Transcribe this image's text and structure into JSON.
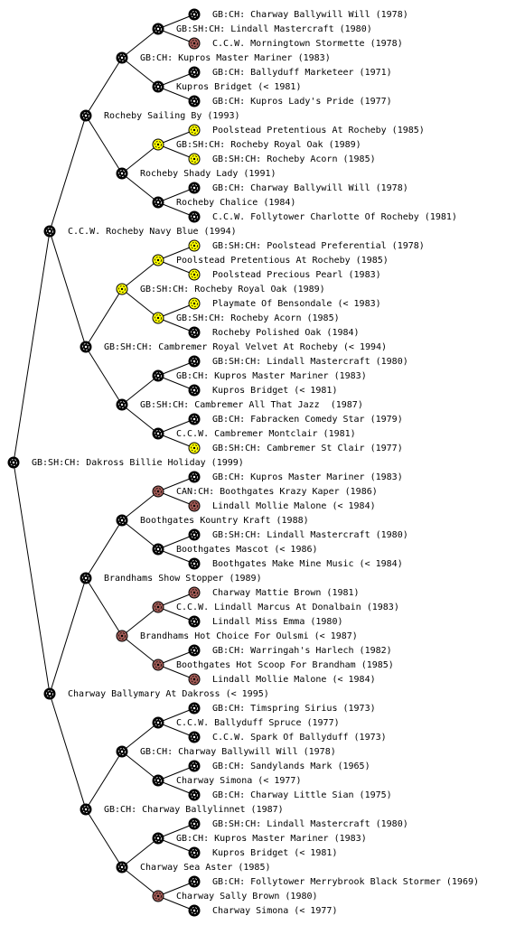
{
  "nodes": [
    {
      "label": "GB:CH: Charway Ballywill Will (1978)",
      "color": "#000000"
    },
    {
      "label": "GB:SH:CH: Lindall Mastercraft (1980)",
      "color": "#000000"
    },
    {
      "label": "C.C.W. Morningtown Stormette (1978)",
      "color": "#a05a55"
    },
    {
      "label": "GB:CH: Kupros Master Mariner (1983)",
      "color": "#000000"
    },
    {
      "label": "GB:CH: Ballyduff Marketeer (1971)",
      "color": "#000000"
    },
    {
      "label": "Kupros Bridget (< 1981)",
      "color": "#000000"
    },
    {
      "label": "GB:CH: Kupros Lady's Pride (1977)",
      "color": "#000000"
    },
    {
      "label": "Rocheby Sailing By (1993)",
      "color": "#000000"
    },
    {
      "label": "Poolstead Pretentious At Rocheby (1985)",
      "color": "#ffff00"
    },
    {
      "label": "GB:SH:CH: Rocheby Royal Oak (1989)",
      "color": "#ffff00"
    },
    {
      "label": "GB:SH:CH: Rocheby Acorn (1985)",
      "color": "#ffff00"
    },
    {
      "label": "Rocheby Shady Lady (1991)",
      "color": "#000000"
    },
    {
      "label": "GB:CH: Charway Ballywill Will (1978)",
      "color": "#000000"
    },
    {
      "label": "Rocheby Chalice (1984)",
      "color": "#000000"
    },
    {
      "label": "C.C.W. Follytower Charlotte Of Rocheby (1981)",
      "color": "#000000"
    },
    {
      "label": "C.C.W. Rocheby Navy Blue (1994)",
      "color": "#000000"
    },
    {
      "label": "GB:SH:CH: Poolstead Preferential (1978)",
      "color": "#ffff00"
    },
    {
      "label": "Poolstead Pretentious At Rocheby (1985)",
      "color": "#ffff00"
    },
    {
      "label": "Poolstead Precious Pearl (1983)",
      "color": "#ffff00"
    },
    {
      "label": "GB:SH:CH: Rocheby Royal Oak (1989)",
      "color": "#ffff00"
    },
    {
      "label": "Playmate Of Bensondale (< 1983)",
      "color": "#ffff00"
    },
    {
      "label": "GB:SH:CH: Rocheby Acorn (1985)",
      "color": "#ffff00"
    },
    {
      "label": "Rocheby Polished Oak (1984)",
      "color": "#000000"
    },
    {
      "label": "GB:SH:CH: Cambremer Royal Velvet At Rocheby (< 1994)",
      "color": "#000000"
    },
    {
      "label": "GB:SH:CH: Lindall Mastercraft (1980)",
      "color": "#000000"
    },
    {
      "label": "GB:CH: Kupros Master Mariner (1983)",
      "color": "#000000"
    },
    {
      "label": "Kupros Bridget (< 1981)",
      "color": "#000000"
    },
    {
      "label": "GB:SH:CH: Cambremer All That Jazz  (1987)",
      "color": "#000000"
    },
    {
      "label": "GB:CH: Fabracken Comedy Star (1979)",
      "color": "#000000"
    },
    {
      "label": "C.C.W. Cambremer Montclair (1981)",
      "color": "#000000"
    },
    {
      "label": "GB:SH:CH: Cambremer St Clair (1977)",
      "color": "#ffff00"
    },
    {
      "label": "GB:SH:CH: Dakross Billie Holiday (1999)",
      "color": "#000000"
    },
    {
      "label": "GB:CH: Kupros Master Mariner (1983)",
      "color": "#000000"
    },
    {
      "label": "CAN:CH: Boothgates Krazy Kaper (1986)",
      "color": "#a05a55"
    },
    {
      "label": "Lindall Mollie Malone (< 1984)",
      "color": "#a05a55"
    },
    {
      "label": "Boothgates Kountry Kraft (1988)",
      "color": "#000000"
    },
    {
      "label": "GB:SH:CH: Lindall Mastercraft (1980)",
      "color": "#000000"
    },
    {
      "label": "Boothgates Mascot (< 1986)",
      "color": "#000000"
    },
    {
      "label": "Boothgates Make Mine Music (< 1984)",
      "color": "#000000"
    },
    {
      "label": "Brandhams Show Stopper (1989)",
      "color": "#000000"
    },
    {
      "label": "Charway Mattie Brown (1981)",
      "color": "#a05a55"
    },
    {
      "label": "C.C.W. Lindall Marcus At Donalbain (1983)",
      "color": "#a05a55"
    },
    {
      "label": "Lindall Miss Emma (1980)",
      "color": "#000000"
    },
    {
      "label": "Brandhams Hot Choice For Oulsmi (< 1987)",
      "color": "#a05a55"
    },
    {
      "label": "GB:CH: Warringah's Harlech (1982)",
      "color": "#000000"
    },
    {
      "label": "Boothgates Hot Scoop For Brandham (1985)",
      "color": "#a05a55"
    },
    {
      "label": "Lindall Mollie Malone (< 1984)",
      "color": "#a05a55"
    },
    {
      "label": "Charway Ballymary At Dakross (< 1995)",
      "color": "#000000"
    },
    {
      "label": "GB:CH: Timspring Sirius (1973)",
      "color": "#000000"
    },
    {
      "label": "C.C.W. Ballyduff Spruce (1977)",
      "color": "#000000"
    },
    {
      "label": "C.C.W. Spark Of Ballyduff (1973)",
      "color": "#000000"
    },
    {
      "label": "GB:CH: Charway Ballywill Will (1978)",
      "color": "#000000"
    },
    {
      "label": "GB:CH: Sandylands Mark (1965)",
      "color": "#000000"
    },
    {
      "label": "Charway Simona (< 1977)",
      "color": "#000000"
    },
    {
      "label": "GB:CH: Charway Little Sian (1975)",
      "color": "#000000"
    },
    {
      "label": "GB:CH: Charway Ballylinnet (1987)",
      "color": "#000000"
    },
    {
      "label": "GB:SH:CH: Lindall Mastercraft (1980)",
      "color": "#000000"
    },
    {
      "label": "GB:CH: Kupros Master Mariner (1983)",
      "color": "#000000"
    },
    {
      "label": "Kupros Bridget (< 1981)",
      "color": "#000000"
    },
    {
      "label": "Charway Sea Aster (1985)",
      "color": "#000000"
    },
    {
      "label": "GB:CH: Follytower Merrybrook Black Stormer (1969)",
      "color": "#000000"
    },
    {
      "label": "Charway Sally Brown (1980)",
      "color": "#a05a55"
    },
    {
      "label": "Charway Simona (< 1977)",
      "color": "#000000"
    }
  ]
}
